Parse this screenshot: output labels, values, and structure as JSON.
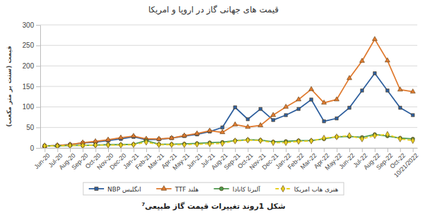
{
  "chart_data": {
    "type": "line",
    "title": "قیمت های جهانی گاز در اروپا و امریکا",
    "y_label": "قیمت (سنت بر متر مکعب)",
    "caption": "شکل 1روند تغییرات قیمت گاز طبیعی",
    "caption_note": "7",
    "categories": [
      "Jun-20",
      "Jul-20",
      "Aug-20",
      "Sep-20",
      "Oct-20",
      "Nov-20",
      "Dec-20",
      "Jan-21",
      "Feb-21",
      "Mar-21",
      "Apr-21",
      "May-21",
      "Jun-21",
      "Jul-21",
      "Aug-21",
      "Sep-21",
      "Oct-21",
      "Nov-21",
      "Dec-21",
      "Jan-22",
      "Feb-22",
      "Mar-22",
      "Apr-22",
      "May-22",
      "Jun-22",
      "Jul-22",
      "Aug-22",
      "Sep-22",
      "Oct-22",
      "10/21/2022"
    ],
    "ylim": [
      0,
      300
    ],
    "yticks": [
      0,
      50,
      100,
      150,
      200,
      250,
      300
    ],
    "grid": true,
    "legend": "bottom",
    "series": [
      {
        "name": "NBP انگلیس",
        "color": "#2e5f9e",
        "marker": "square",
        "line_style": "solid",
        "values": [
          5,
          6,
          8,
          12,
          14,
          18,
          22,
          27,
          20,
          21,
          24,
          29,
          33,
          40,
          50,
          99,
          70,
          95,
          68,
          80,
          95,
          118,
          65,
          72,
          98,
          140,
          182,
          140,
          98,
          80
        ]
      },
      {
        "name": "TTF هلند",
        "color": "#e07b30",
        "marker": "triangle",
        "line_style": "solid",
        "values": [
          5,
          6,
          8,
          13,
          16,
          20,
          25,
          29,
          22,
          22,
          24,
          30,
          35,
          42,
          38,
          57,
          51,
          55,
          80,
          100,
          118,
          143,
          110,
          118,
          170,
          212,
          265,
          213,
          142,
          137
        ]
      },
      {
        "name": "آلبرتا کانادا",
        "color": "#4e9a4e",
        "marker": "circle",
        "line_style": "solid",
        "values": [
          5,
          5,
          6,
          6,
          7,
          8,
          8,
          9,
          18,
          9,
          9,
          10,
          11,
          13,
          14,
          18,
          20,
          19,
          15,
          16,
          18,
          18,
          22,
          27,
          28,
          26,
          33,
          29,
          24,
          22
        ]
      },
      {
        "name": "هنری هاب امریکا",
        "color": "#e8d020",
        "marker": "diamond",
        "line_style": "dashed",
        "values": [
          5,
          5,
          6,
          6,
          7,
          7,
          7,
          8,
          14,
          8,
          8,
          8,
          9,
          10,
          11,
          17,
          19,
          18,
          13,
          13,
          16,
          17,
          24,
          27,
          30,
          22,
          30,
          33,
          22,
          18
        ]
      }
    ]
  }
}
